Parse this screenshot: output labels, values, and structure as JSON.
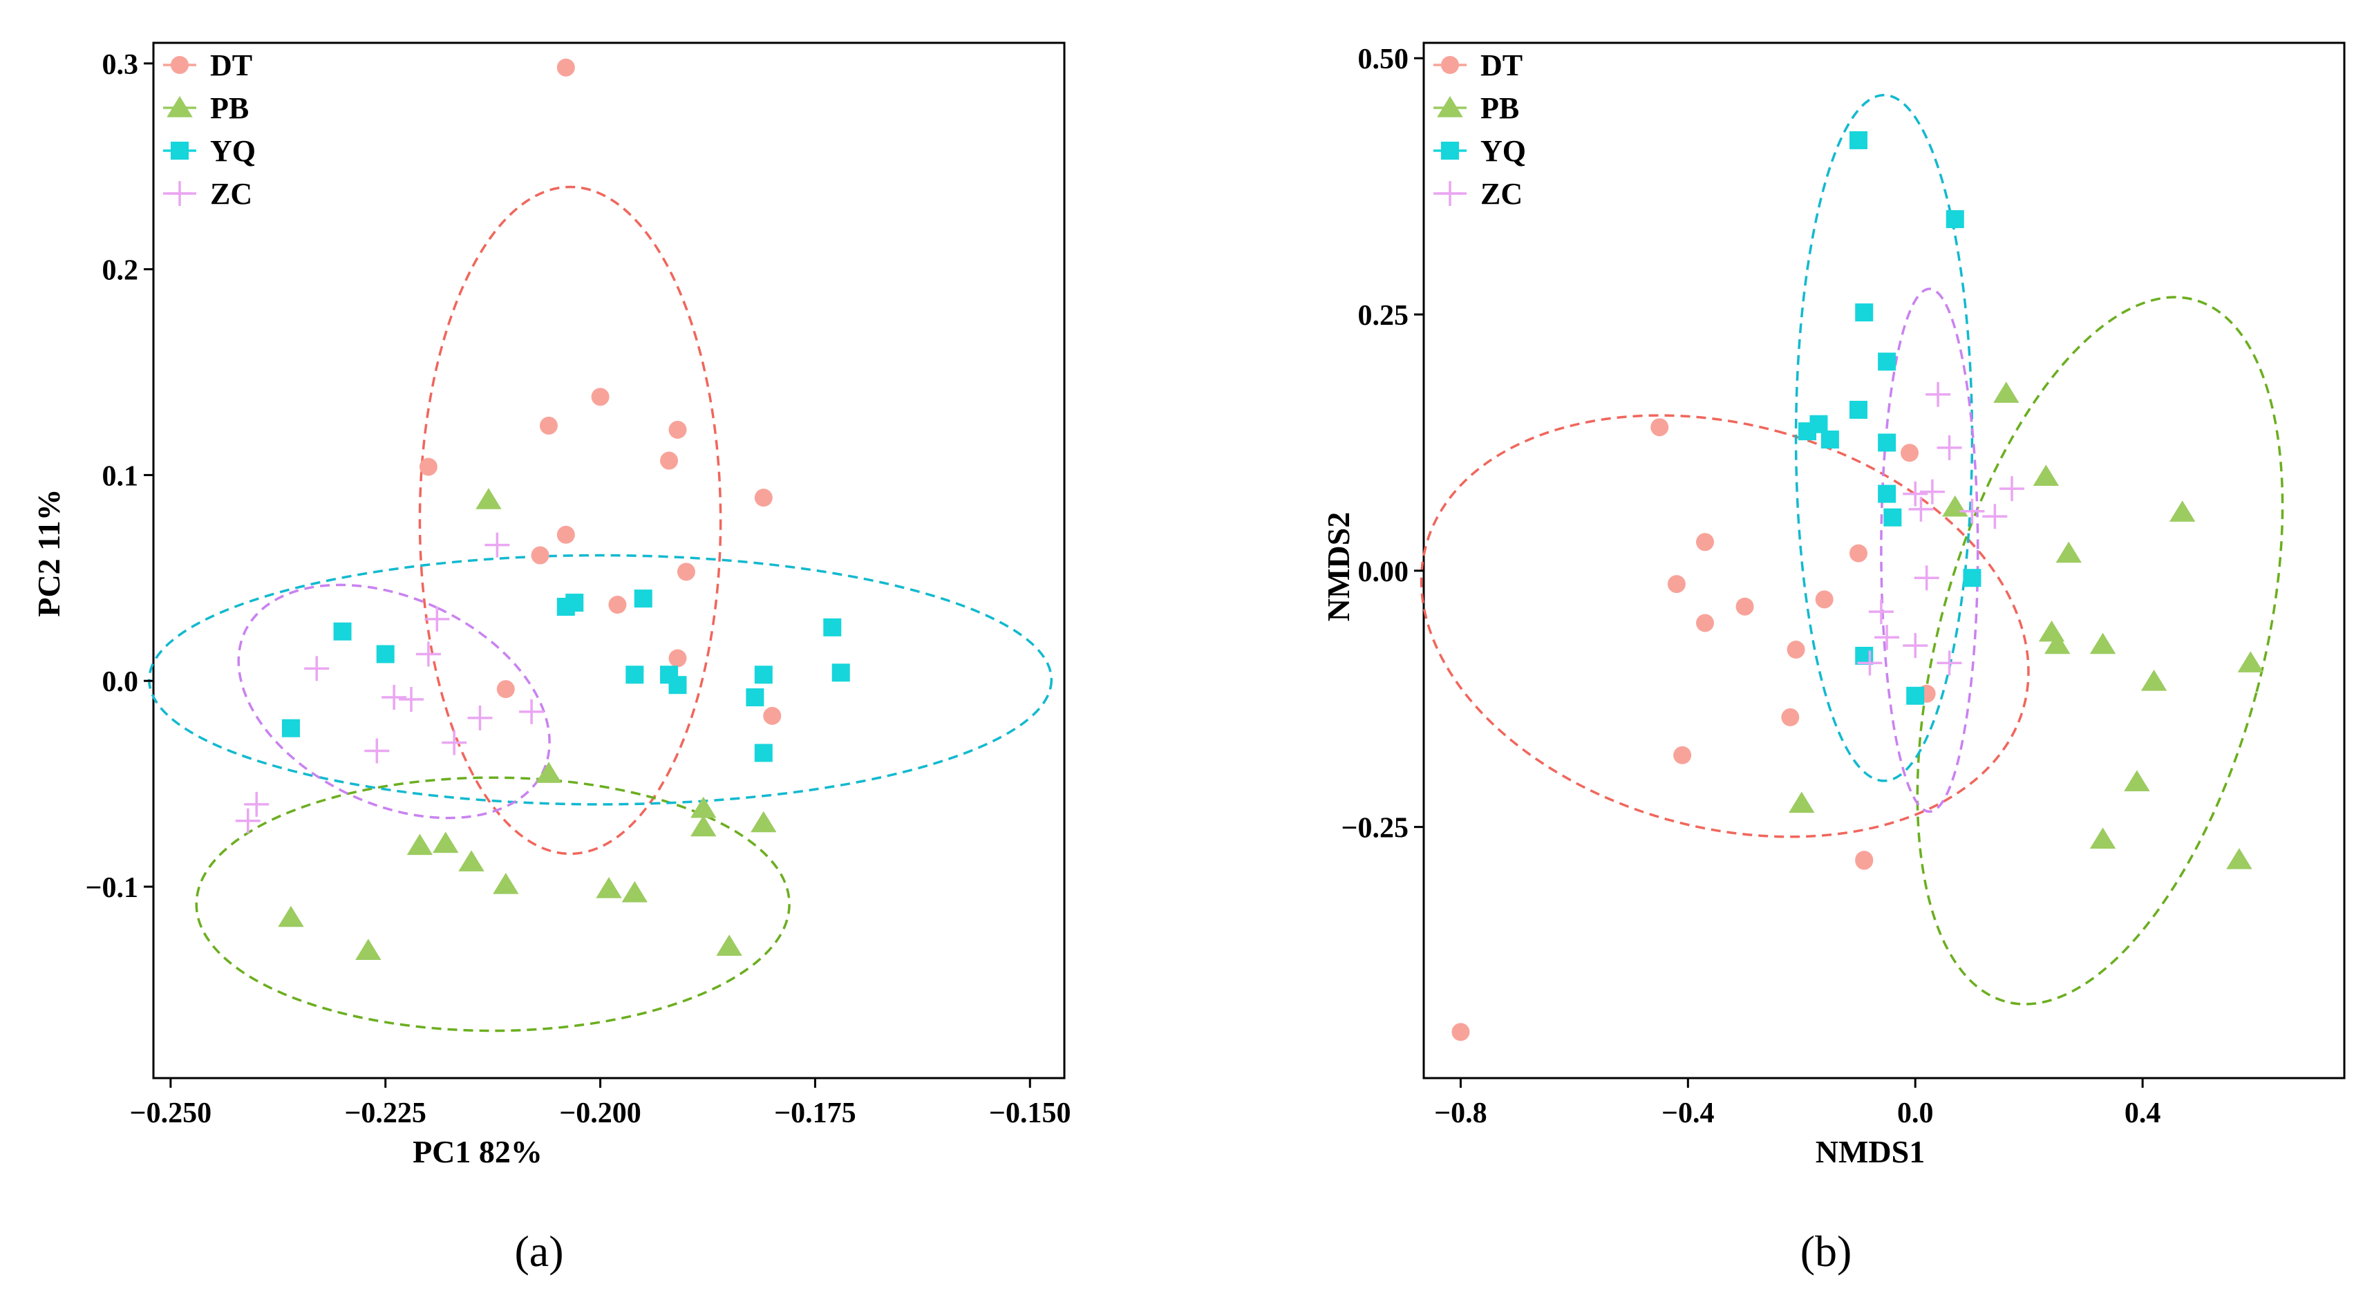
{
  "colors": {
    "DT": "#F8A39A",
    "PB": "#9CCB60",
    "YQ": "#16D5DB",
    "ZC": "#EAA6F2",
    "DT_ellipse": "#F0665C",
    "PB_ellipse": "#6BAE1F",
    "YQ_ellipse": "#12B9CF",
    "ZC_ellipse": "#C982F0"
  },
  "chart_data": [
    {
      "type": "scatter",
      "panel_label": "(a)",
      "title": "",
      "xlabel": "PC1 82%",
      "ylabel": "PC2 11%",
      "xlim": [
        -0.252,
        -0.146
      ],
      "ylim": [
        -0.193,
        0.31
      ],
      "xticks": [
        -0.25,
        -0.225,
        -0.2,
        -0.175,
        -0.15
      ],
      "xtick_labels": [
        "−0.250",
        "−0.225",
        "−0.200",
        "−0.175",
        "−0.150"
      ],
      "yticks": [
        -0.1,
        0.0,
        0.1,
        0.2,
        0.3
      ],
      "ytick_labels": [
        "−0.1",
        "0.0",
        "0.1",
        "0.2",
        "0.3"
      ],
      "grid": false,
      "legend": {
        "position": "top-left",
        "entries": [
          "DT",
          "PB",
          "YQ",
          "ZC"
        ]
      },
      "series": [
        {
          "name": "DT",
          "marker": "circle",
          "x": [
            -0.204,
            -0.22,
            -0.206,
            -0.2,
            -0.192,
            -0.191,
            -0.181,
            -0.204,
            -0.207,
            -0.198,
            -0.19,
            -0.191,
            -0.211,
            -0.18
          ],
          "y": [
            0.298,
            0.104,
            0.124,
            0.138,
            0.107,
            0.122,
            0.089,
            0.071,
            0.061,
            0.037,
            0.053,
            0.011,
            -0.004,
            -0.017
          ]
        },
        {
          "name": "PB",
          "marker": "triangle",
          "x": [
            -0.213,
            -0.206,
            -0.188,
            -0.188,
            -0.181,
            -0.221,
            -0.218,
            -0.215,
            -0.211,
            -0.199,
            -0.196,
            -0.236,
            -0.227,
            -0.185
          ],
          "y": [
            0.088,
            -0.045,
            -0.062,
            -0.071,
            -0.069,
            -0.08,
            -0.079,
            -0.088,
            -0.099,
            -0.101,
            -0.103,
            -0.115,
            -0.131,
            -0.129
          ]
        },
        {
          "name": "YQ",
          "marker": "square",
          "x": [
            -0.23,
            -0.225,
            -0.236,
            -0.204,
            -0.203,
            -0.195,
            -0.196,
            -0.192,
            -0.191,
            -0.182,
            -0.181,
            -0.181,
            -0.173,
            -0.172
          ],
          "y": [
            0.024,
            0.013,
            -0.023,
            0.036,
            0.038,
            0.04,
            0.003,
            0.003,
            -0.002,
            -0.008,
            0.003,
            -0.035,
            0.026,
            0.004
          ]
        },
        {
          "name": "ZC",
          "marker": "plus",
          "x": [
            -0.212,
            -0.219,
            -0.233,
            -0.224,
            -0.222,
            -0.22,
            -0.226,
            -0.217,
            -0.208,
            -0.24,
            -0.241,
            -0.214
          ],
          "y": [
            0.066,
            0.03,
            0.006,
            -0.008,
            -0.009,
            0.013,
            -0.034,
            -0.03,
            -0.015,
            -0.06,
            -0.068,
            -0.018
          ]
        }
      ],
      "ellipses": [
        {
          "group": "DT",
          "center": [
            -0.2035,
            0.078
          ],
          "semi_axes": [
            0.0175,
            0.162
          ],
          "rotation_deg": 0
        },
        {
          "group": "PB",
          "center": [
            -0.2125,
            -0.1085
          ],
          "semi_axes": [
            0.0345,
            0.0615
          ],
          "rotation_deg": 0
        },
        {
          "group": "YQ",
          "center": [
            -0.2,
            0.0005
          ],
          "semi_axes": [
            0.0525,
            0.0605
          ],
          "rotation_deg": 0
        },
        {
          "group": "ZC",
          "center": [
            -0.224,
            -0.01
          ],
          "semi_axes": [
            0.012,
            0.08
          ],
          "rotation_deg": -65
        }
      ]
    },
    {
      "type": "scatter",
      "panel_label": "(b)",
      "title": "",
      "xlabel": "NMDS1",
      "ylabel": "NMDS2",
      "xlim": [
        -0.865,
        0.755
      ],
      "ylim": [
        -0.495,
        0.515
      ],
      "xticks": [
        -0.8,
        -0.4,
        0.0,
        0.4
      ],
      "xtick_labels": [
        "−0.8",
        "−0.4",
        "0.0",
        "0.4"
      ],
      "yticks": [
        -0.25,
        0.0,
        0.25,
        0.5
      ],
      "ytick_labels": [
        "−0.25",
        "0.00",
        "0.25",
        "0.50"
      ],
      "grid": false,
      "legend": {
        "position": "top-left",
        "entries": [
          "DT",
          "PB",
          "YQ",
          "ZC"
        ]
      },
      "series": [
        {
          "name": "DT",
          "marker": "circle",
          "x": [
            -0.45,
            -0.37,
            -0.42,
            -0.37,
            -0.3,
            -0.16,
            -0.21,
            -0.22,
            -0.41,
            -0.09,
            -0.01,
            -0.1,
            0.02,
            -0.09,
            -0.8
          ],
          "y": [
            0.14,
            0.028,
            -0.013,
            -0.051,
            -0.035,
            -0.028,
            -0.077,
            -0.143,
            -0.18,
            -0.283,
            0.115,
            0.017,
            -0.12,
            -0.282,
            -0.45
          ]
        },
        {
          "name": "PB",
          "marker": "triangle",
          "x": [
            0.16,
            0.23,
            0.07,
            0.27,
            0.47,
            0.24,
            0.25,
            0.33,
            0.42,
            0.59,
            0.39,
            0.33,
            0.57,
            -0.2
          ],
          "y": [
            0.173,
            0.092,
            0.062,
            0.017,
            0.057,
            -0.06,
            -0.072,
            -0.072,
            -0.108,
            -0.09,
            -0.206,
            -0.262,
            -0.282,
            -0.227
          ]
        },
        {
          "name": "YQ",
          "marker": "square",
          "x": [
            -0.1,
            0.07,
            -0.09,
            -0.05,
            -0.19,
            -0.17,
            -0.15,
            -0.1,
            -0.05,
            -0.05,
            -0.04,
            -0.09,
            0.1,
            0.0
          ],
          "y": [
            0.42,
            0.343,
            0.252,
            0.204,
            0.136,
            0.143,
            0.128,
            0.157,
            0.125,
            0.075,
            0.052,
            -0.083,
            -0.007,
            -0.122
          ]
        },
        {
          "name": "ZC",
          "marker": "plus",
          "x": [
            0.04,
            0.06,
            0.0,
            0.01,
            0.03,
            0.1,
            -0.06,
            -0.08,
            0.02,
            0.0,
            -0.05,
            0.06,
            0.14,
            0.17
          ],
          "y": [
            0.172,
            0.12,
            0.075,
            0.06,
            0.077,
            0.058,
            -0.04,
            -0.09,
            -0.007,
            -0.073,
            -0.065,
            -0.09,
            0.053,
            0.08
          ]
        }
      ],
      "ellipses": [
        {
          "group": "DT",
          "center": [
            -0.335,
            -0.054
          ],
          "semi_axes": [
            0.355,
            0.302
          ],
          "rotation_deg": -75
        },
        {
          "group": "PB",
          "center": [
            0.325,
            -0.078
          ],
          "semi_axes": [
            0.285,
            0.3545
          ],
          "rotation_deg": 15
        },
        {
          "group": "YQ",
          "center": [
            -0.055,
            0.1295
          ],
          "semi_axes": [
            0.155,
            0.3345
          ],
          "rotation_deg": 0
        },
        {
          "group": "ZC",
          "center": [
            0.025,
            0.02
          ],
          "semi_axes": [
            0.085,
            0.255
          ],
          "rotation_deg": 0
        }
      ]
    }
  ]
}
